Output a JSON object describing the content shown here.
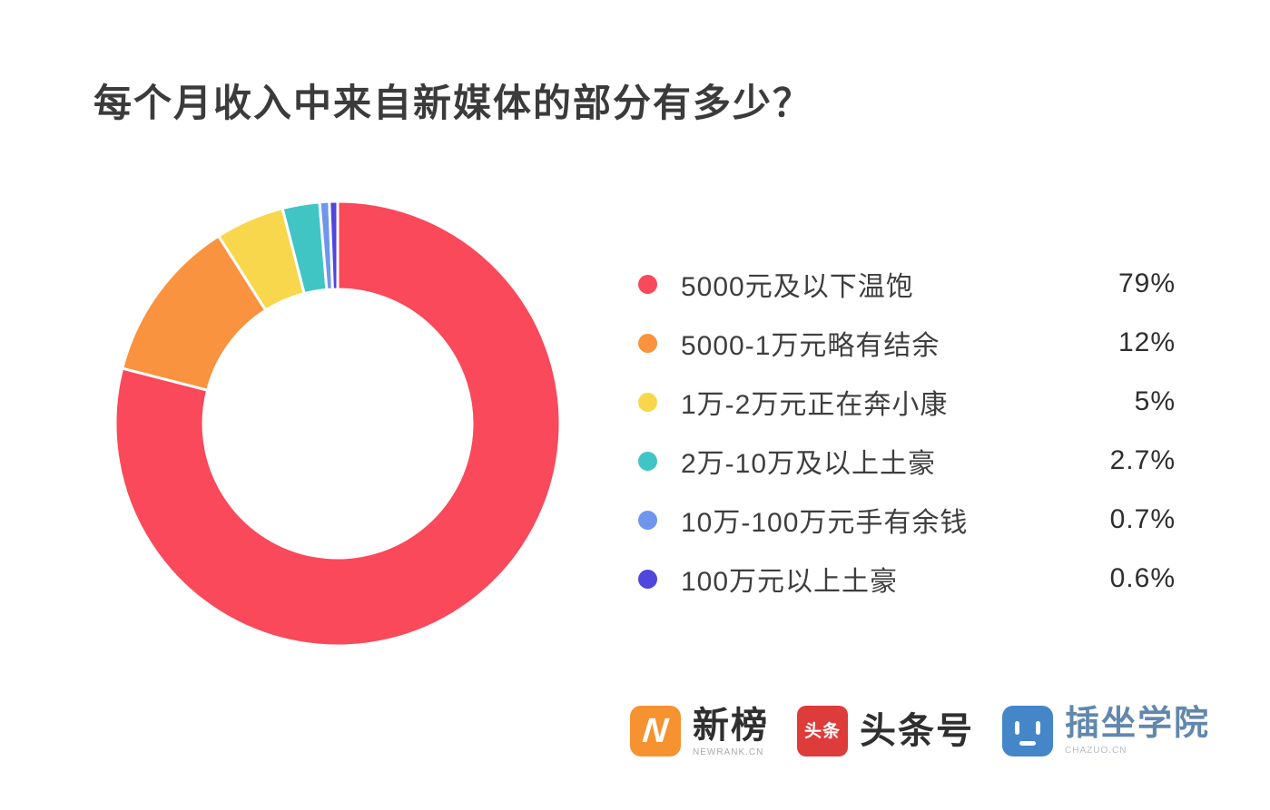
{
  "title": "每个月收入中来自新媒体的部分有多少？",
  "chart_data": {
    "type": "pie",
    "subtype": "donut",
    "title": "每个月收入中来自新媒体的部分有多少？",
    "categories": [
      "5000元及以下温饱",
      "5000-1万元略有结余",
      "1万-2万元正在奔小康",
      "2万-10万及以上土豪",
      "10万-100万元手有余钱",
      "100万元以上土豪"
    ],
    "values": [
      79,
      12,
      5,
      2.7,
      0.7,
      0.6
    ],
    "value_labels": [
      "79%",
      "12%",
      "5%",
      "2.7%",
      "0.7%",
      "0.6%"
    ],
    "colors": [
      "#f9495a",
      "#f9933f",
      "#f8d74c",
      "#41c4c4",
      "#6e96ec",
      "#4f46dc"
    ],
    "start_angle_deg": 0,
    "direction": "clockwise",
    "inner_radius_ratio": 0.6,
    "slice_gap_color": "#ffffff",
    "legend_position": "right"
  },
  "footer": {
    "logos": [
      {
        "name": "newrank",
        "text": "新榜",
        "subtext": "NEWRANK.CN",
        "icon": "newrank-n-icon",
        "icon_glyph": "N",
        "icon_color": "#f6922f"
      },
      {
        "name": "toutiao",
        "text": "头条号",
        "icon": "toutiao-icon",
        "icon_glyph": "头条",
        "icon_color": "#de3b3b"
      },
      {
        "name": "chazuo",
        "text": "插坐学院",
        "subtext": "CHAZUO.CN",
        "icon": "robot-face-icon",
        "icon_color": "#4486c8",
        "text_color": "#6287ad"
      }
    ]
  }
}
